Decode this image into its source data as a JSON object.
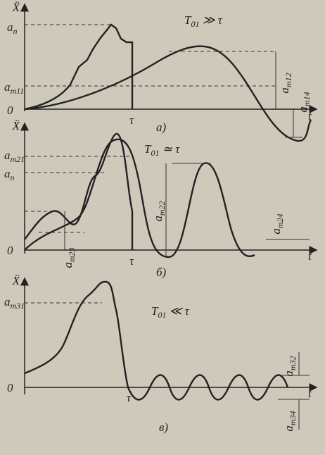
{
  "panels": [
    {
      "y_label": "Ẍ",
      "origin": "0",
      "tau": "τ",
      "time_label": "t",
      "caption": "а)",
      "ratio": {
        "base": "T",
        "sub": "01",
        "rel": " ≫ τ"
      },
      "labels": [
        {
          "base": "a",
          "sub": "п"
        },
        {
          "base": "a",
          "sub": "m11"
        },
        {
          "base": "a",
          "sub": "m12"
        },
        {
          "base": "a",
          "sub": "m14"
        }
      ]
    },
    {
      "y_label": "Ẍ",
      "origin": "0",
      "tau": "τ",
      "time_label": "t",
      "caption": "б)",
      "ratio": {
        "base": "T",
        "sub": "01",
        "rel": " ≃ τ"
      },
      "labels": [
        {
          "base": "a",
          "sub": "m21"
        },
        {
          "base": "a",
          "sub": "п"
        },
        {
          "base": "a",
          "sub": "m22"
        },
        {
          "base": "a",
          "sub": "m24"
        },
        {
          "base": "a",
          "sub": "m23"
        }
      ]
    },
    {
      "y_label": "Ẍ",
      "origin": "0",
      "tau": "τ",
      "time_label": "t",
      "caption": "в)",
      "ratio": {
        "base": "T",
        "sub": "01",
        "rel": " ≪ τ"
      },
      "labels": [
        {
          "base": "a",
          "sub": "m31"
        },
        {
          "base": "a",
          "sub": "m32"
        },
        {
          "base": "a",
          "sub": "m34"
        }
      ]
    }
  ]
}
